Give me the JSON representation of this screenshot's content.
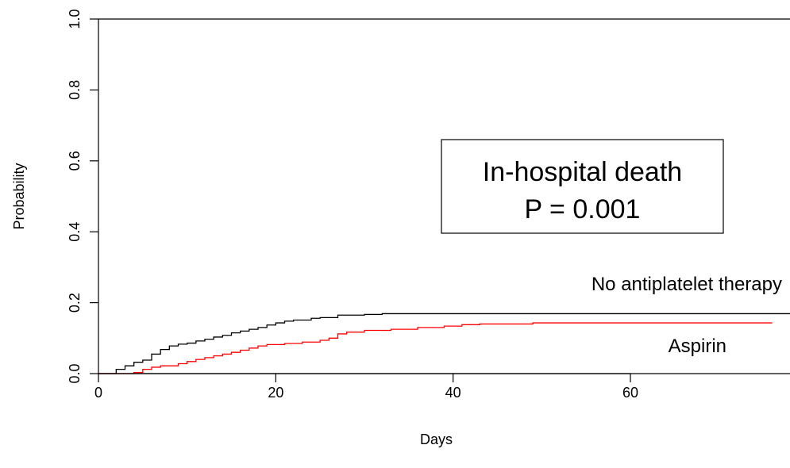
{
  "chart_data": {
    "type": "line",
    "title": "",
    "xlabel": "Days",
    "ylabel": "Probability",
    "xlim": [
      0,
      78
    ],
    "ylim": [
      0,
      1
    ],
    "xticks": [
      0,
      20,
      40,
      60
    ],
    "yticks": [
      0.0,
      0.2,
      0.4,
      0.6,
      0.8,
      1.0
    ],
    "xtick_labels": [
      "0",
      "20",
      "40",
      "60"
    ],
    "ytick_labels": [
      "0.0",
      "0.2",
      "0.4",
      "0.6",
      "0.8",
      "1.0"
    ],
    "grid": false,
    "step": true,
    "annotation": {
      "lines": [
        "In-hospital death",
        "P = 0.001"
      ]
    },
    "series": [
      {
        "name": "No antiplatelet therapy",
        "color": "#000000",
        "points": [
          [
            0,
            0.0
          ],
          [
            2,
            0.012
          ],
          [
            3,
            0.022
          ],
          [
            4,
            0.032
          ],
          [
            5,
            0.038
          ],
          [
            6,
            0.055
          ],
          [
            7,
            0.068
          ],
          [
            8,
            0.078
          ],
          [
            9,
            0.083
          ],
          [
            10,
            0.086
          ],
          [
            11,
            0.092
          ],
          [
            12,
            0.097
          ],
          [
            13,
            0.103
          ],
          [
            14,
            0.108
          ],
          [
            15,
            0.115
          ],
          [
            16,
            0.12
          ],
          [
            17,
            0.125
          ],
          [
            18,
            0.13
          ],
          [
            19,
            0.137
          ],
          [
            20,
            0.143
          ],
          [
            21,
            0.148
          ],
          [
            22,
            0.151
          ],
          [
            24,
            0.156
          ],
          [
            25,
            0.158
          ],
          [
            27,
            0.165
          ],
          [
            30,
            0.167
          ],
          [
            32,
            0.169
          ],
          [
            78,
            0.169
          ]
        ]
      },
      {
        "name": "Aspirin",
        "color": "#ff0000",
        "points": [
          [
            0,
            0.0
          ],
          [
            4,
            0.003
          ],
          [
            5,
            0.012
          ],
          [
            6,
            0.018
          ],
          [
            7,
            0.022
          ],
          [
            9,
            0.028
          ],
          [
            10,
            0.034
          ],
          [
            11,
            0.04
          ],
          [
            12,
            0.045
          ],
          [
            13,
            0.05
          ],
          [
            14,
            0.055
          ],
          [
            15,
            0.06
          ],
          [
            16,
            0.066
          ],
          [
            17,
            0.072
          ],
          [
            18,
            0.078
          ],
          [
            19,
            0.082
          ],
          [
            21,
            0.085
          ],
          [
            23,
            0.089
          ],
          [
            25,
            0.094
          ],
          [
            26,
            0.1
          ],
          [
            27,
            0.112
          ],
          [
            28,
            0.117
          ],
          [
            30,
            0.122
          ],
          [
            33,
            0.125
          ],
          [
            36,
            0.13
          ],
          [
            39,
            0.134
          ],
          [
            41,
            0.138
          ],
          [
            43,
            0.14
          ],
          [
            47,
            0.14
          ],
          [
            49,
            0.143
          ],
          [
            76,
            0.143
          ]
        ]
      }
    ]
  }
}
